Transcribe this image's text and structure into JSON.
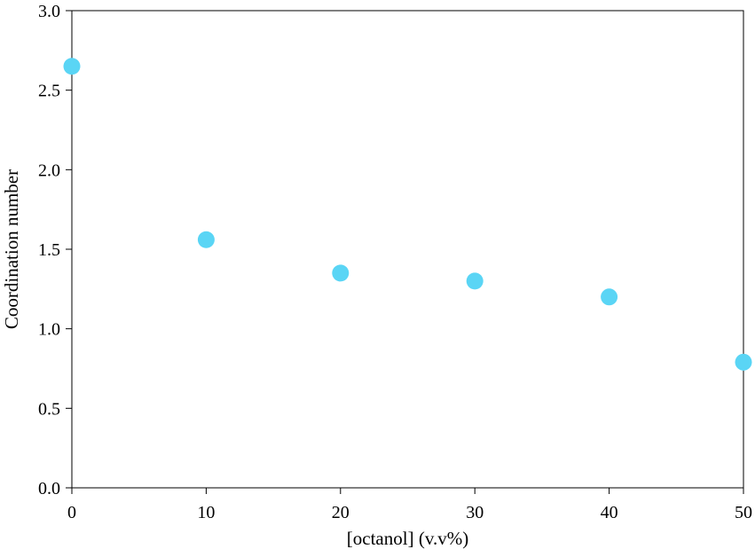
{
  "chart_data": {
    "type": "scatter",
    "title": "",
    "xlabel": "[octanol] (v.v%)",
    "ylabel": "Coordination number",
    "xlim": [
      0,
      50
    ],
    "ylim": [
      0,
      3.0
    ],
    "xticks": [
      0,
      10,
      20,
      30,
      40,
      50
    ],
    "xtick_labels": [
      "0",
      "10",
      "20",
      "30",
      "40",
      "50"
    ],
    "yticks": [
      0,
      0.5,
      1.0,
      1.5,
      2.0,
      2.5,
      3.0
    ],
    "ytick_labels": [
      "0.0",
      "0.5",
      "1.0",
      "1.5",
      "2.0",
      "2.5",
      "3.0"
    ],
    "grid": false,
    "legend": "none",
    "marker_color": "#5ad5f5",
    "series": [
      {
        "x": [
          0,
          10,
          20,
          30,
          40,
          50
        ],
        "y": [
          2.65,
          1.56,
          1.35,
          1.3,
          1.2,
          0.79
        ]
      }
    ]
  }
}
